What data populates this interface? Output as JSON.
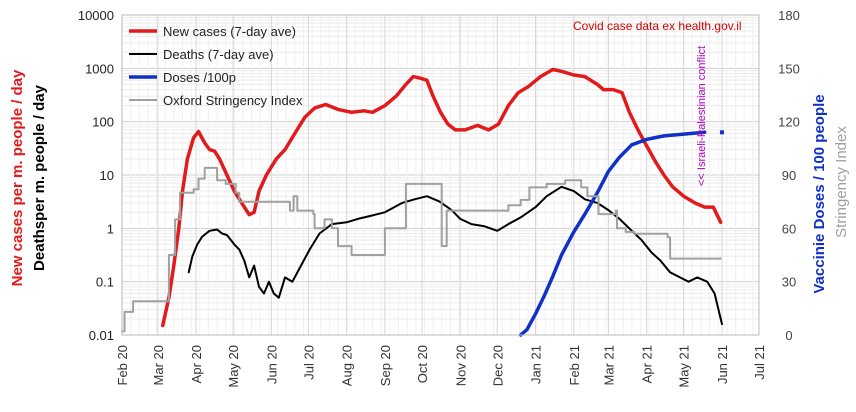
{
  "chart_data": {
    "type": "line",
    "source_note": "Covid case data ex  health.gov.il",
    "annotation": "<< Israeli-Palestinian  conflict",
    "y_left_label": "New cases per m. people / day",
    "y_left_label2": "Deathsper m. people / day",
    "y_right_label": "Vaccinie Doses / 100 people",
    "y_right_label2": "Stringency Index",
    "y_left_scale": "log",
    "y_left_range": [
      0.01,
      10000
    ],
    "y_left_ticks": [
      "0.01",
      "0.1",
      "1",
      "10",
      "100",
      "1000",
      "10000"
    ],
    "y_right_range": [
      0,
      180
    ],
    "y_right_ticks": [
      "0",
      "30",
      "60",
      "90",
      "120",
      "150",
      "180"
    ],
    "x_range": [
      "2020-02-01",
      "2021-07-01"
    ],
    "x_ticks": [
      {
        "label": "Feb 20",
        "date": "2020-02-01"
      },
      {
        "label": "Mar 20",
        "date": "2020-03-01"
      },
      {
        "label": "Apr 20",
        "date": "2020-04-01"
      },
      {
        "label": "May 20",
        "date": "2020-05-01"
      },
      {
        "label": "Jun 20",
        "date": "2020-06-01"
      },
      {
        "label": "Jul 20",
        "date": "2020-07-01"
      },
      {
        "label": "Aug 20",
        "date": "2020-08-01"
      },
      {
        "label": "Sep 20",
        "date": "2020-09-01"
      },
      {
        "label": "Oct 20",
        "date": "2020-10-01"
      },
      {
        "label": "Nov 20",
        "date": "2020-11-01"
      },
      {
        "label": "Dec 20",
        "date": "2020-12-01"
      },
      {
        "label": "Jan 21",
        "date": "2021-01-01"
      },
      {
        "label": "Feb 21",
        "date": "2021-02-01"
      },
      {
        "label": "Mar 21",
        "date": "2021-03-01"
      },
      {
        "label": "Apr 21",
        "date": "2021-04-01"
      },
      {
        "label": "May 21",
        "date": "2021-05-01"
      },
      {
        "label": "Jun 21",
        "date": "2021-06-01"
      },
      {
        "label": "Jul 21",
        "date": "2021-07-01"
      }
    ],
    "grid": true,
    "legend_position": "top-left",
    "series": [
      {
        "name": "New cases (7-day ave)",
        "axis": "left",
        "color": "#e31a1c",
        "points": [
          [
            "2020-03-05",
            0.015
          ],
          [
            "2020-03-10",
            0.05
          ],
          [
            "2020-03-14",
            0.2
          ],
          [
            "2020-03-18",
            1
          ],
          [
            "2020-03-21",
            5
          ],
          [
            "2020-03-25",
            20
          ],
          [
            "2020-03-30",
            50
          ],
          [
            "2020-04-03",
            65
          ],
          [
            "2020-04-08",
            40
          ],
          [
            "2020-04-12",
            30
          ],
          [
            "2020-04-16",
            28
          ],
          [
            "2020-04-20",
            20
          ],
          [
            "2020-04-26",
            10
          ],
          [
            "2020-05-02",
            5
          ],
          [
            "2020-05-08",
            3
          ],
          [
            "2020-05-14",
            1.8
          ],
          [
            "2020-05-18",
            2
          ],
          [
            "2020-05-22",
            5
          ],
          [
            "2020-05-28",
            10
          ],
          [
            "2020-06-05",
            20
          ],
          [
            "2020-06-12",
            30
          ],
          [
            "2020-06-20",
            60
          ],
          [
            "2020-06-28",
            120
          ],
          [
            "2020-07-06",
            180
          ],
          [
            "2020-07-15",
            210
          ],
          [
            "2020-07-25",
            170
          ],
          [
            "2020-08-05",
            150
          ],
          [
            "2020-08-15",
            160
          ],
          [
            "2020-08-22",
            150
          ],
          [
            "2020-09-01",
            200
          ],
          [
            "2020-09-10",
            300
          ],
          [
            "2020-09-18",
            500
          ],
          [
            "2020-09-24",
            700
          ],
          [
            "2020-09-30",
            650
          ],
          [
            "2020-10-05",
            600
          ],
          [
            "2020-10-10",
            300
          ],
          [
            "2020-10-16",
            150
          ],
          [
            "2020-10-22",
            90
          ],
          [
            "2020-10-28",
            70
          ],
          [
            "2020-11-05",
            70
          ],
          [
            "2020-11-15",
            85
          ],
          [
            "2020-11-24",
            70
          ],
          [
            "2020-12-02",
            90
          ],
          [
            "2020-12-10",
            200
          ],
          [
            "2020-12-18",
            350
          ],
          [
            "2020-12-26",
            450
          ],
          [
            "2021-01-05",
            700
          ],
          [
            "2021-01-15",
            950
          ],
          [
            "2021-01-22",
            880
          ],
          [
            "2021-02-01",
            750
          ],
          [
            "2021-02-10",
            700
          ],
          [
            "2021-02-20",
            500
          ],
          [
            "2021-02-25",
            400
          ],
          [
            "2021-03-05",
            400
          ],
          [
            "2021-03-12",
            350
          ],
          [
            "2021-03-18",
            150
          ],
          [
            "2021-03-25",
            70
          ],
          [
            "2021-04-01",
            35
          ],
          [
            "2021-04-08",
            18
          ],
          [
            "2021-04-15",
            10
          ],
          [
            "2021-04-22",
            6
          ],
          [
            "2021-05-01",
            4
          ],
          [
            "2021-05-10",
            3
          ],
          [
            "2021-05-18",
            2.5
          ],
          [
            "2021-05-25",
            2.5
          ],
          [
            "2021-05-31",
            1.3
          ]
        ]
      },
      {
        "name": "Deaths (7-day ave)",
        "axis": "left",
        "color": "#000000",
        "points": [
          [
            "2020-03-26",
            0.15
          ],
          [
            "2020-03-29",
            0.3
          ],
          [
            "2020-04-02",
            0.5
          ],
          [
            "2020-04-06",
            0.7
          ],
          [
            "2020-04-12",
            0.9
          ],
          [
            "2020-04-18",
            0.95
          ],
          [
            "2020-04-22",
            0.8
          ],
          [
            "2020-04-26",
            0.75
          ],
          [
            "2020-05-02",
            0.5
          ],
          [
            "2020-05-06",
            0.4
          ],
          [
            "2020-05-10",
            0.25
          ],
          [
            "2020-05-14",
            0.12
          ],
          [
            "2020-05-18",
            0.2
          ],
          [
            "2020-05-22",
            0.08
          ],
          [
            "2020-05-26",
            0.06
          ],
          [
            "2020-05-30",
            0.1
          ],
          [
            "2020-06-03",
            0.06
          ],
          [
            "2020-06-07",
            0.05
          ],
          [
            "2020-06-12",
            0.12
          ],
          [
            "2020-06-18",
            0.1
          ],
          [
            "2020-06-25",
            0.2
          ],
          [
            "2020-07-02",
            0.4
          ],
          [
            "2020-07-10",
            0.8
          ],
          [
            "2020-07-20",
            1.2
          ],
          [
            "2020-08-01",
            1.3
          ],
          [
            "2020-08-10",
            1.5
          ],
          [
            "2020-08-20",
            1.7
          ],
          [
            "2020-09-01",
            2
          ],
          [
            "2020-09-15",
            3
          ],
          [
            "2020-09-25",
            3.5
          ],
          [
            "2020-10-05",
            4
          ],
          [
            "2020-10-15",
            3.2
          ],
          [
            "2020-10-25",
            2.2
          ],
          [
            "2020-11-01",
            1.5
          ],
          [
            "2020-11-10",
            1.2
          ],
          [
            "2020-11-20",
            1.1
          ],
          [
            "2020-12-01",
            0.9
          ],
          [
            "2020-12-10",
            1.2
          ],
          [
            "2020-12-20",
            1.6
          ],
          [
            "2021-01-01",
            2.5
          ],
          [
            "2021-01-10",
            4
          ],
          [
            "2021-01-22",
            6
          ],
          [
            "2021-02-01",
            5
          ],
          [
            "2021-02-10",
            3.5
          ],
          [
            "2021-02-20",
            3
          ],
          [
            "2021-03-01",
            2.2
          ],
          [
            "2021-03-10",
            1.5
          ],
          [
            "2021-03-20",
            0.9
          ],
          [
            "2021-03-28",
            0.6
          ],
          [
            "2021-04-05",
            0.35
          ],
          [
            "2021-04-12",
            0.25
          ],
          [
            "2021-04-20",
            0.15
          ],
          [
            "2021-04-28",
            0.12
          ],
          [
            "2021-05-05",
            0.1
          ],
          [
            "2021-05-12",
            0.12
          ],
          [
            "2021-05-20",
            0.1
          ],
          [
            "2021-05-26",
            0.06
          ],
          [
            "2021-05-30",
            0.025
          ],
          [
            "2021-06-01",
            0.016
          ]
        ]
      },
      {
        "name": "Doses /100p",
        "axis": "right",
        "color": "#1030c8",
        "points": [
          [
            "2020-12-20",
            0
          ],
          [
            "2020-12-25",
            3
          ],
          [
            "2021-01-01",
            12
          ],
          [
            "2021-01-08",
            22
          ],
          [
            "2021-01-15",
            33
          ],
          [
            "2021-01-22",
            45
          ],
          [
            "2021-02-01",
            58
          ],
          [
            "2021-02-10",
            68
          ],
          [
            "2021-02-20",
            80
          ],
          [
            "2021-03-01",
            92
          ],
          [
            "2021-03-10",
            100
          ],
          [
            "2021-03-20",
            107
          ],
          [
            "2021-04-01",
            110
          ],
          [
            "2021-04-15",
            112
          ],
          [
            "2021-05-01",
            113
          ],
          [
            "2021-05-18",
            114
          ]
        ],
        "extra_marker": [
          "2021-06-01",
          114
        ]
      },
      {
        "name": "Oxford Stringency Index",
        "axis": "right",
        "color": "#a0a0a0",
        "points": [
          [
            "2020-02-01",
            2
          ],
          [
            "2020-02-03",
            13
          ],
          [
            "2020-02-08",
            13
          ],
          [
            "2020-02-10",
            19
          ],
          [
            "2020-02-26",
            19
          ],
          [
            "2020-02-28",
            19
          ],
          [
            "2020-03-08",
            19
          ],
          [
            "2020-03-10",
            45
          ],
          [
            "2020-03-15",
            65
          ],
          [
            "2020-03-19",
            80
          ],
          [
            "2020-03-30",
            82
          ],
          [
            "2020-04-03",
            88
          ],
          [
            "2020-04-08",
            94
          ],
          [
            "2020-04-18",
            87
          ],
          [
            "2020-04-25",
            85
          ],
          [
            "2020-05-03",
            80
          ],
          [
            "2020-05-06",
            75
          ],
          [
            "2020-05-31",
            75
          ],
          [
            "2020-06-15",
            75
          ],
          [
            "2020-06-16",
            70
          ],
          [
            "2020-06-19",
            78
          ],
          [
            "2020-06-22",
            70
          ],
          [
            "2020-07-05",
            68
          ],
          [
            "2020-07-06",
            60
          ],
          [
            "2020-07-14",
            65
          ],
          [
            "2020-07-20",
            60
          ],
          [
            "2020-07-25",
            50
          ],
          [
            "2020-08-05",
            45
          ],
          [
            "2020-08-10",
            45
          ],
          [
            "2020-08-31",
            45
          ],
          [
            "2020-09-01",
            60
          ],
          [
            "2020-09-18",
            85
          ],
          [
            "2020-10-15",
            85
          ],
          [
            "2020-10-17",
            50
          ],
          [
            "2020-10-20",
            50
          ],
          [
            "2020-10-21",
            70
          ],
          [
            "2020-11-25",
            70
          ],
          [
            "2020-12-10",
            73
          ],
          [
            "2020-12-20",
            76
          ],
          [
            "2020-12-27",
            83
          ],
          [
            "2021-01-10",
            85
          ],
          [
            "2021-01-25",
            87
          ],
          [
            "2021-02-07",
            83
          ],
          [
            "2021-02-12",
            78
          ],
          [
            "2021-02-21",
            68
          ],
          [
            "2021-03-07",
            70
          ],
          [
            "2021-03-08",
            60
          ],
          [
            "2021-03-15",
            58
          ],
          [
            "2021-03-22",
            57
          ],
          [
            "2021-04-18",
            55
          ],
          [
            "2021-04-20",
            43
          ],
          [
            "2021-05-31",
            43
          ]
        ]
      }
    ]
  }
}
